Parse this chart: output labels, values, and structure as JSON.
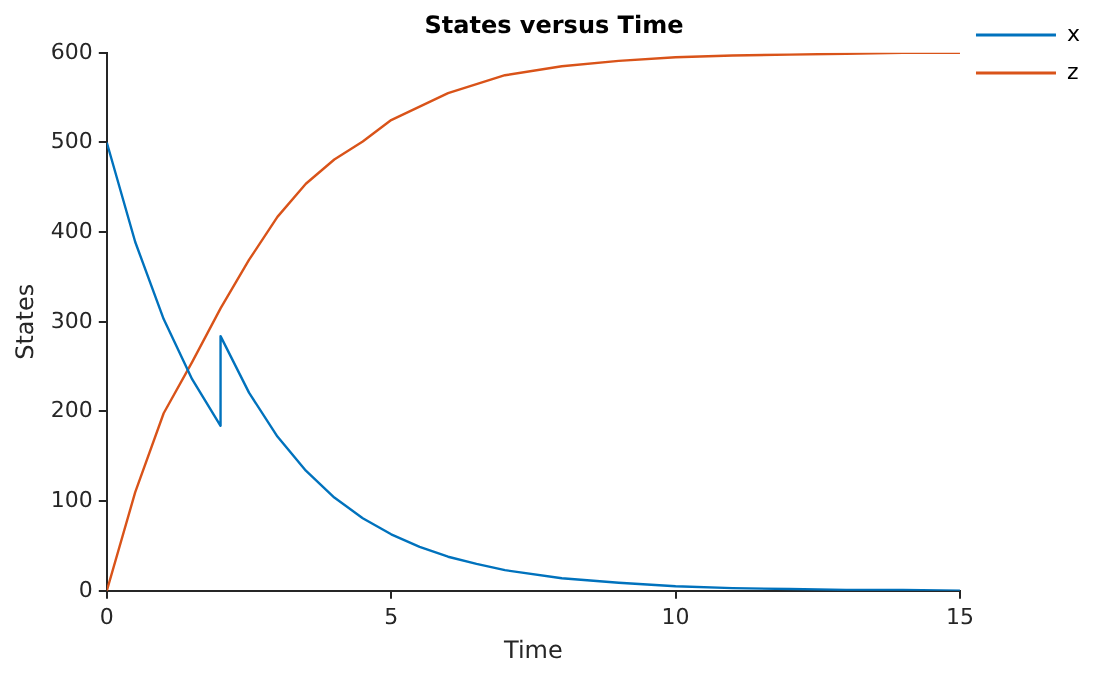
{
  "chart_data": {
    "type": "line",
    "title": "States versus Time",
    "xlabel": "Time",
    "ylabel": "States",
    "xlim": [
      0,
      15
    ],
    "xticks": [
      0,
      5,
      10,
      15
    ],
    "ylim": [
      0,
      600
    ],
    "yticks": [
      0,
      100,
      200,
      300,
      400,
      500,
      600
    ],
    "grid": false,
    "legend": "top right",
    "marker": "none",
    "line_style": "solid",
    "series": [
      {
        "name": "x",
        "color": "#0072bd",
        "x": [
          0,
          0.5,
          1,
          1.5,
          2,
          2,
          2.5,
          3,
          3.5,
          4,
          4.5,
          5,
          5.5,
          6,
          6.5,
          7,
          8,
          9,
          10,
          11,
          12,
          13,
          14,
          15
        ],
        "values": [
          500,
          389,
          303,
          236,
          184,
          284,
          221,
          172,
          134,
          104,
          81,
          63,
          49,
          38,
          30,
          23,
          14,
          9,
          5,
          3,
          2,
          1,
          1,
          0
        ]
      },
      {
        "name": "z",
        "color": "#d95319",
        "x": [
          0,
          0.5,
          1,
          1.5,
          2,
          2.5,
          3,
          3.5,
          4,
          4.5,
          5,
          6,
          7,
          8,
          9,
          10,
          11,
          12,
          13,
          14,
          15
        ],
        "values": [
          0,
          110,
          198,
          255,
          315,
          369,
          417,
          454,
          481,
          501,
          525,
          555,
          575,
          585,
          591,
          595,
          597,
          598,
          599,
          600,
          600
        ]
      }
    ]
  }
}
